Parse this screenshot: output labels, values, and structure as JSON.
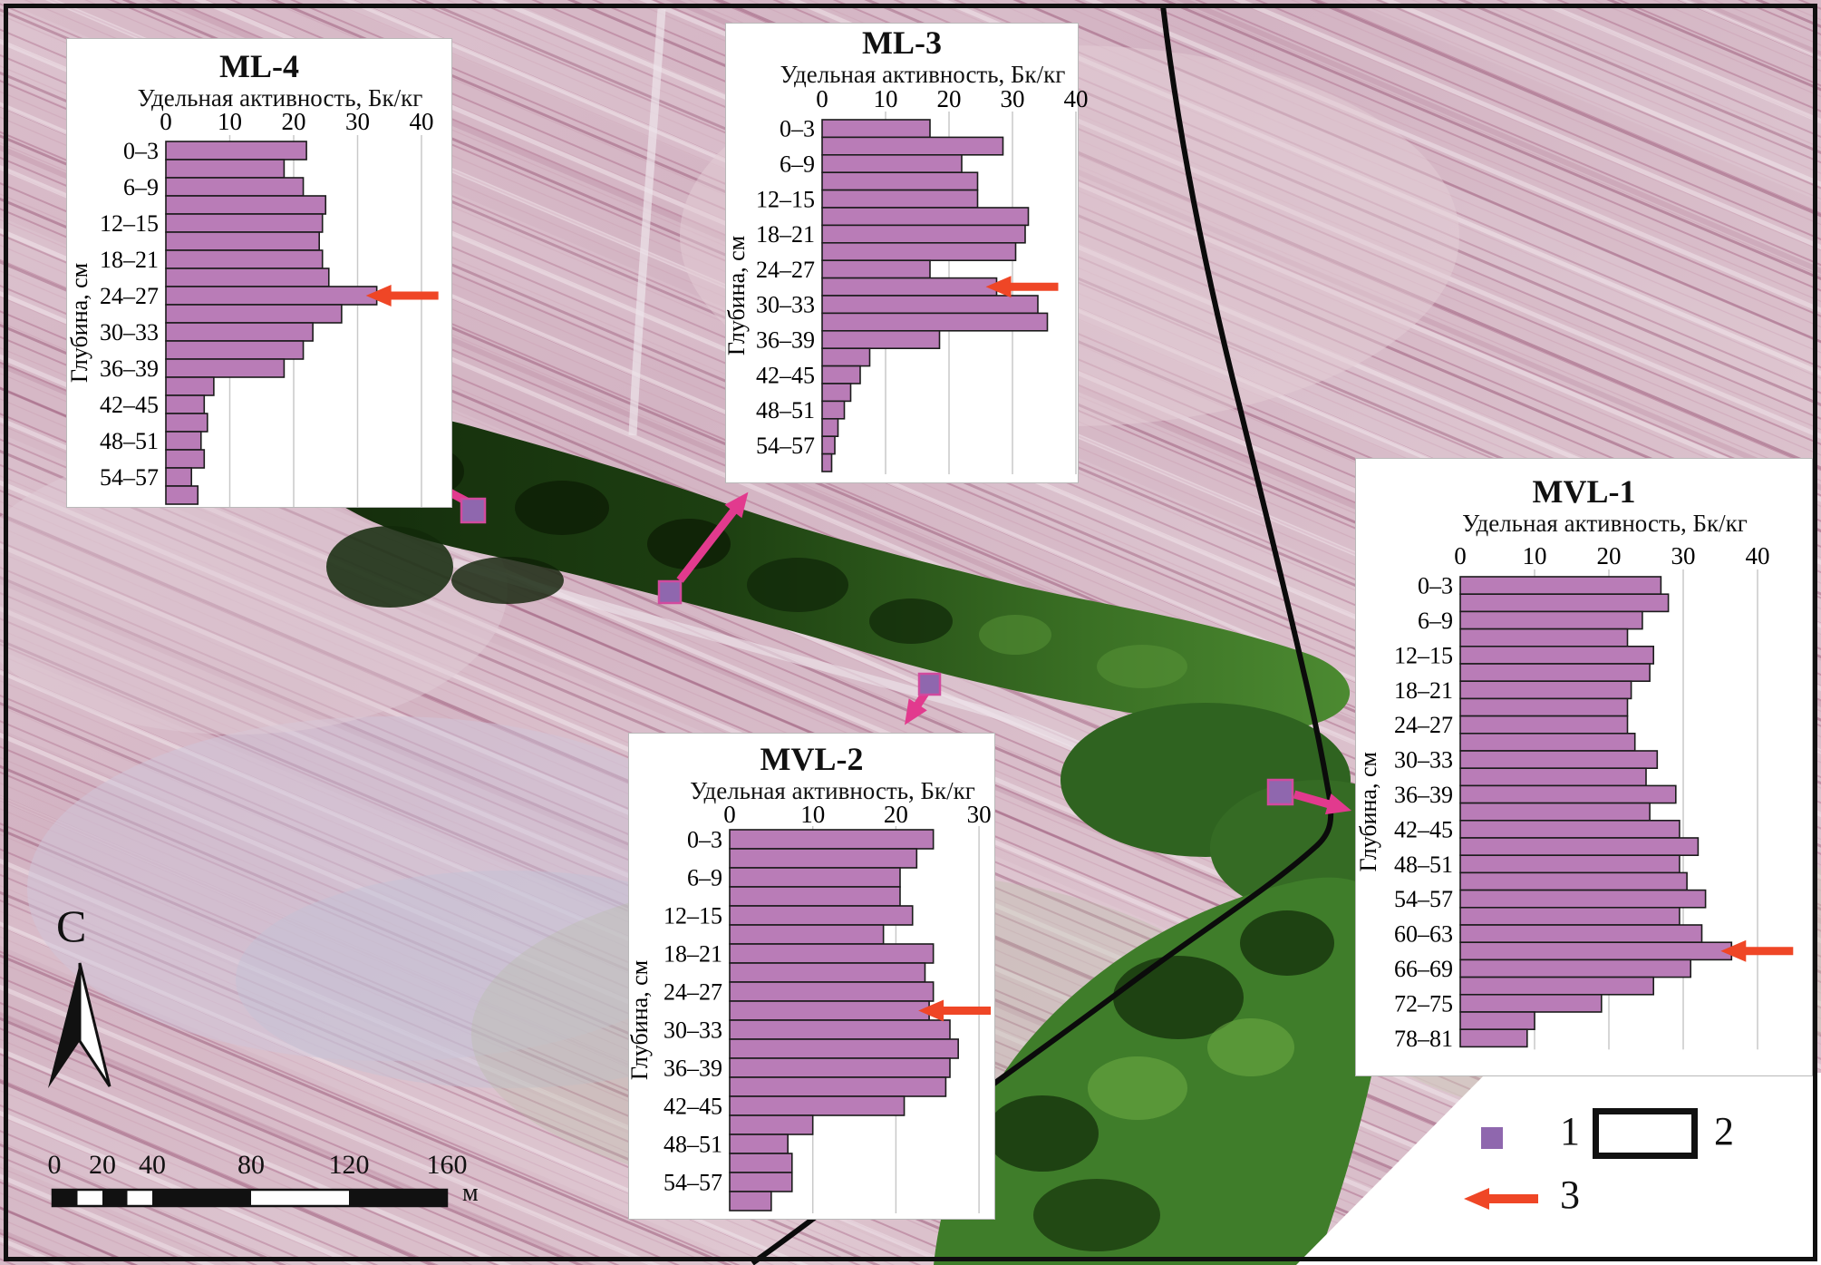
{
  "figure": {
    "type": "aerial-map-with-soil-activity-profiles",
    "map": {
      "north_label": "С",
      "scale_bar": {
        "tick_labels": [
          "0",
          "20",
          "40",
          "80",
          "120",
          "160"
        ],
        "unit": "м"
      },
      "legend": {
        "items": [
          {
            "symbol": "sample-point-square",
            "label": "1"
          },
          {
            "symbol": "chart-frame-rectangle",
            "label": "2"
          },
          {
            "symbol": "peak-arrow",
            "label": "3"
          }
        ]
      }
    },
    "colors": {
      "bar_fill": "#b97cb7",
      "bar_stroke": "#1c1c1c",
      "grid_line": "#c9c9c9",
      "red_arrow": "#ef4626",
      "magenta_arrow": "#e23a8e",
      "marker_fill": "#8f67ae",
      "marker_stroke": "#d14a9e",
      "forest_dark": "#142c0c",
      "road": "#0b0b0b"
    }
  },
  "chart_data": [
    {
      "type": "bar",
      "title": "ML-4",
      "xlabel": "Удельная активность, Бк/кг",
      "ylabel": "Глубина, см",
      "orientation": "horizontal",
      "x_ticks": [
        0,
        10,
        20,
        30,
        40
      ],
      "xlim": [
        0,
        40
      ],
      "grid": true,
      "categories": [
        "0–3",
        "3–6",
        "6–9",
        "9–12",
        "12–15",
        "15–18",
        "18–21",
        "21–24",
        "24–27",
        "27–30",
        "30–33",
        "33–36",
        "36–39",
        "39–42",
        "42–45",
        "45–48",
        "48–51",
        "51–54",
        "54–57",
        "57–60"
      ],
      "values": [
        22,
        18.5,
        21.5,
        25,
        24.5,
        24,
        24.5,
        25.5,
        33,
        27.5,
        23,
        21.5,
        18.5,
        7.5,
        6,
        6.5,
        5.5,
        6,
        4,
        5
      ],
      "arrow_index": 8
    },
    {
      "type": "bar",
      "title": "ML-3",
      "xlabel": "Удельная активность, Бк/кг",
      "ylabel": "Глубина, см",
      "orientation": "horizontal",
      "x_ticks": [
        0,
        10,
        20,
        30,
        40
      ],
      "xlim": [
        0,
        40
      ],
      "grid": true,
      "categories": [
        "0–3",
        "3–6",
        "6–9",
        "9–12",
        "12–15",
        "15–18",
        "18–21",
        "21–24",
        "24–27",
        "27–30",
        "30–33",
        "33–36",
        "36–39",
        "39–42",
        "42–45",
        "45–48",
        "48–51",
        "51–54",
        "54–57",
        "57–60"
      ],
      "values": [
        17,
        28.5,
        22,
        24.5,
        24.5,
        32.5,
        32,
        30.5,
        17,
        27.5,
        34,
        35.5,
        18.5,
        7.5,
        6,
        4.5,
        3.5,
        2.5,
        2,
        1.5
      ],
      "arrow_index": 9
    },
    {
      "type": "bar",
      "title": "MVL-1",
      "xlabel": "Удельная активность, Бк/кг",
      "ylabel": "Глубина, см",
      "orientation": "horizontal",
      "x_ticks": [
        0,
        10,
        20,
        30,
        40
      ],
      "xlim": [
        0,
        40
      ],
      "grid": true,
      "categories": [
        "0–3",
        "3–6",
        "6–9",
        "9–12",
        "12–15",
        "15–18",
        "18–21",
        "21–24",
        "24–27",
        "27–30",
        "30–33",
        "33–36",
        "36–39",
        "39–42",
        "42–45",
        "45–48",
        "48–51",
        "51–54",
        "54–57",
        "57–60",
        "60–63",
        "63–66",
        "66–69",
        "69–72",
        "72–75",
        "75–78",
        "78–81"
      ],
      "values": [
        27,
        28,
        24.5,
        22.5,
        26,
        25.5,
        23,
        22.5,
        22.5,
        23.5,
        26.5,
        25,
        29,
        25.5,
        29.5,
        32,
        29.5,
        30.5,
        33,
        29.5,
        32.5,
        36.5,
        31,
        26,
        19,
        10,
        9
      ],
      "arrow_index": 21
    },
    {
      "type": "bar",
      "title": "MVL-2",
      "xlabel": "Удельная активность, Бк/кг",
      "ylabel": "Глубина, см",
      "orientation": "horizontal",
      "x_ticks": [
        0,
        10,
        20,
        30
      ],
      "xlim": [
        0,
        30
      ],
      "grid": true,
      "categories": [
        "0–3",
        "3–6",
        "6–9",
        "9–12",
        "12–15",
        "15–18",
        "18–21",
        "21–24",
        "24–27",
        "27–30",
        "30–33",
        "33–36",
        "36–39",
        "39–42",
        "42–45",
        "45–48",
        "48–51",
        "51–54",
        "54–57",
        "57–60"
      ],
      "values": [
        24.5,
        22.5,
        20.5,
        20.5,
        22,
        18.5,
        24.5,
        23.5,
        24.5,
        24,
        26.5,
        27.5,
        26.5,
        26,
        21,
        10,
        7,
        7.5,
        7.5,
        5
      ],
      "arrow_index": 9
    }
  ]
}
